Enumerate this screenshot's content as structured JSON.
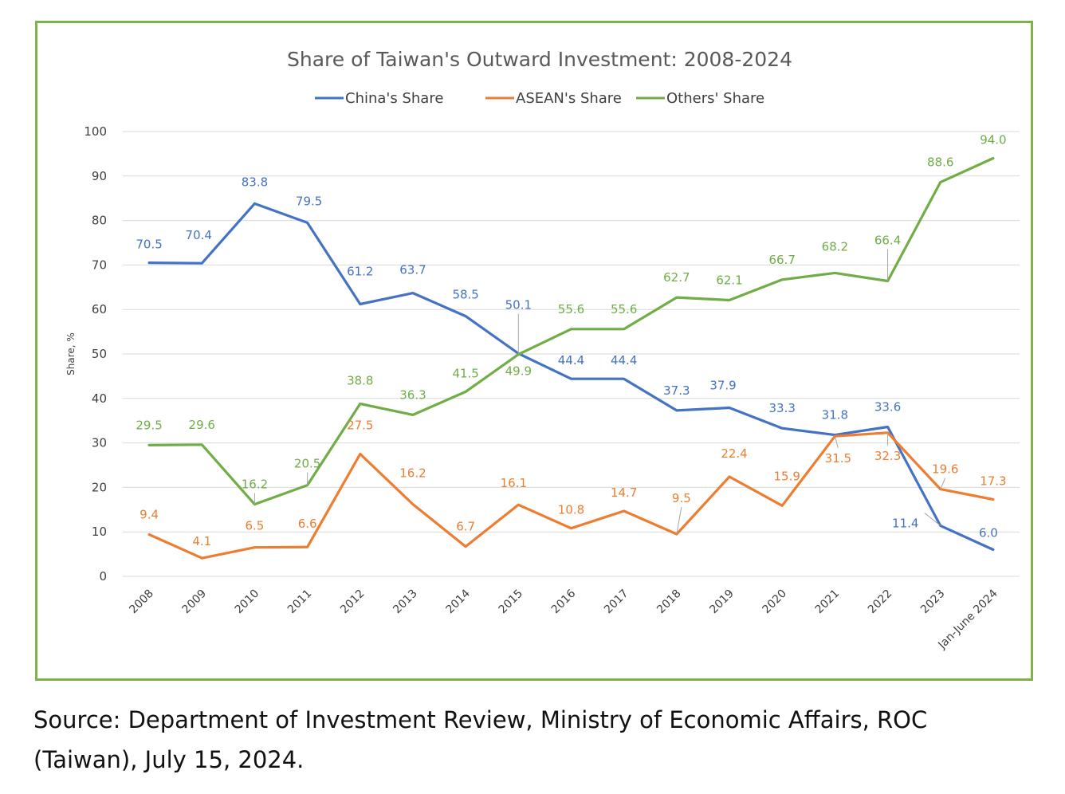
{
  "chart_data": {
    "type": "line",
    "title": "Share of Taiwan's Outward Investment: 2008-2024",
    "xlabel": "",
    "ylabel": "Share, %",
    "ylim": [
      0,
      100
    ],
    "yticks": [
      0,
      10,
      20,
      30,
      40,
      50,
      60,
      70,
      80,
      90,
      100
    ],
    "grid": true,
    "legend_position": "top",
    "categories": [
      "2008",
      "2009",
      "2010",
      "2011",
      "2012",
      "2013",
      "2014",
      "2015",
      "2016",
      "2017",
      "2018",
      "2019",
      "2020",
      "2021",
      "2022",
      "2023",
      "Jan-June 2024"
    ],
    "series": [
      {
        "name": "China's Share",
        "color": "#4472c4",
        "values": [
          70.5,
          70.4,
          83.8,
          79.5,
          61.2,
          63.7,
          58.5,
          50.1,
          44.4,
          44.4,
          37.3,
          37.9,
          33.3,
          31.8,
          33.6,
          11.4,
          6.0
        ],
        "labels": [
          "70.5",
          "70.4",
          "83.8",
          "79.5",
          "61.2",
          "63.7",
          "58.5",
          "50.1",
          "44.4",
          "44.4",
          "37.3",
          "37.9",
          "33.3",
          "31.8",
          "33.6",
          "11.4",
          "6.0"
        ]
      },
      {
        "name": "ASEAN's Share",
        "color": "#ed7d31",
        "values": [
          9.4,
          4.1,
          6.5,
          6.6,
          27.5,
          16.2,
          6.7,
          16.1,
          10.8,
          14.7,
          9.5,
          22.4,
          15.9,
          31.5,
          32.3,
          19.6,
          17.3
        ],
        "labels": [
          "9.4",
          "4.1",
          "6.5",
          "6.6",
          "27.5",
          "16.2",
          "6.7",
          "16.1",
          "10.8",
          "14.7",
          "9.5",
          "22.4",
          "15.9",
          "31.5",
          "32.3",
          "19.6",
          "17.3"
        ]
      },
      {
        "name": "Others' Share",
        "color": "#70ad47",
        "values": [
          29.5,
          29.6,
          16.2,
          20.5,
          38.8,
          36.3,
          41.5,
          49.9,
          55.6,
          55.6,
          62.7,
          62.1,
          66.7,
          68.2,
          66.4,
          88.6,
          94.0
        ],
        "labels": [
          "29.5",
          "29.6",
          "16.2",
          "20.5",
          "38.8",
          "36.3",
          "41.5",
          "49.9",
          "55.6",
          "55.6",
          "62.7",
          "62.1",
          "66.7",
          "68.2",
          "66.4",
          "88.6",
          "94.0"
        ]
      }
    ]
  },
  "source": {
    "line1": "Source: Department of Investment Review, Ministry of Economic Affairs, ROC",
    "line2": "(Taiwan), July 15, 2024."
  }
}
